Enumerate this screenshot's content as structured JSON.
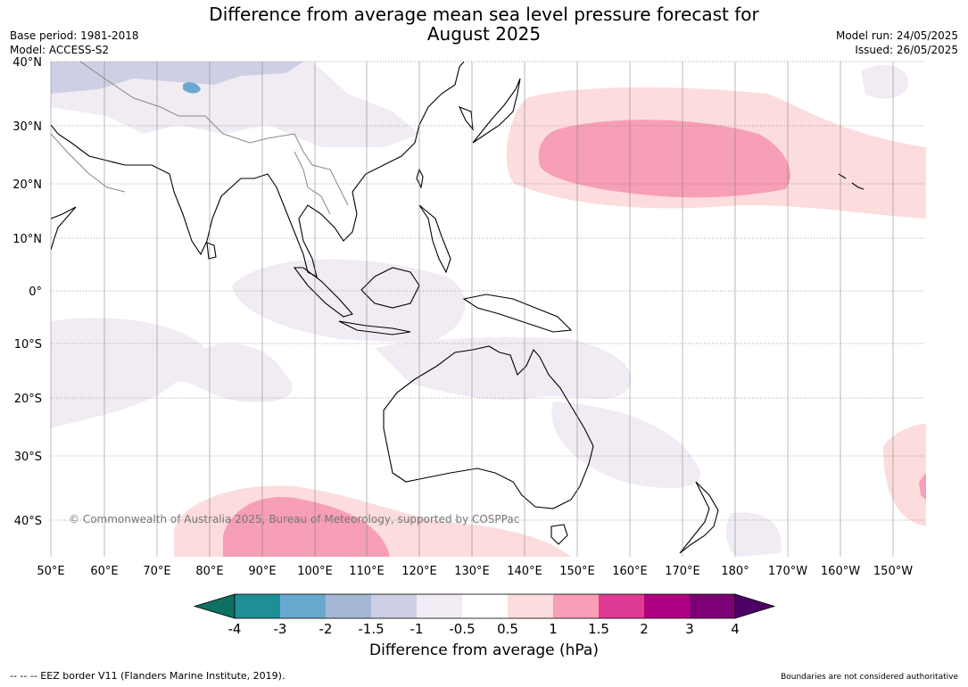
{
  "title_line1": "Difference from average mean sea level pressure forecast for",
  "title_line2": "August 2025",
  "base_period": "Base period: 1981-2018",
  "model": "Model: ACCESS-S2",
  "model_run": "Model run: 24/05/2025",
  "issued": "Issued: 26/05/2025",
  "copyright": "© Commonwealth of Australia 2025, Bureau of Meteorology, supported by COSPPac",
  "lat_labels": [
    "40°N",
    "30°N",
    "20°N",
    "10°N",
    "0°",
    "10°S",
    "20°S",
    "30°S",
    "40°S"
  ],
  "lon_labels": [
    "50°E",
    "60°E",
    "70°E",
    "80°E",
    "90°E",
    "100°E",
    "110°E",
    "120°E",
    "130°E",
    "140°E",
    "150°E",
    "160°E",
    "170°E",
    "180°",
    "170°W",
    "160°W",
    "150°W"
  ],
  "colorbar": {
    "ticks": [
      "-4",
      "-3",
      "-2",
      "-1.5",
      "-1",
      "-0.5",
      "0.5",
      "1",
      "1.5",
      "2",
      "3",
      "4"
    ],
    "colors": [
      "#0e7062",
      "#1e8f95",
      "#6aa9cf",
      "#a5b9d6",
      "#cdcfe5",
      "#f1ebf3",
      "#ffffff",
      "#fcdcdc",
      "#f79fb6",
      "#df3b94",
      "#ae0080",
      "#7d0077",
      "#4d0066"
    ],
    "label": "Difference from average (hPa)"
  },
  "footer_left": "--  --  -- EEZ border V11 (Flanders Marine Institute, 2019).",
  "footer_right": "Boundaries are not considered authoritative"
}
